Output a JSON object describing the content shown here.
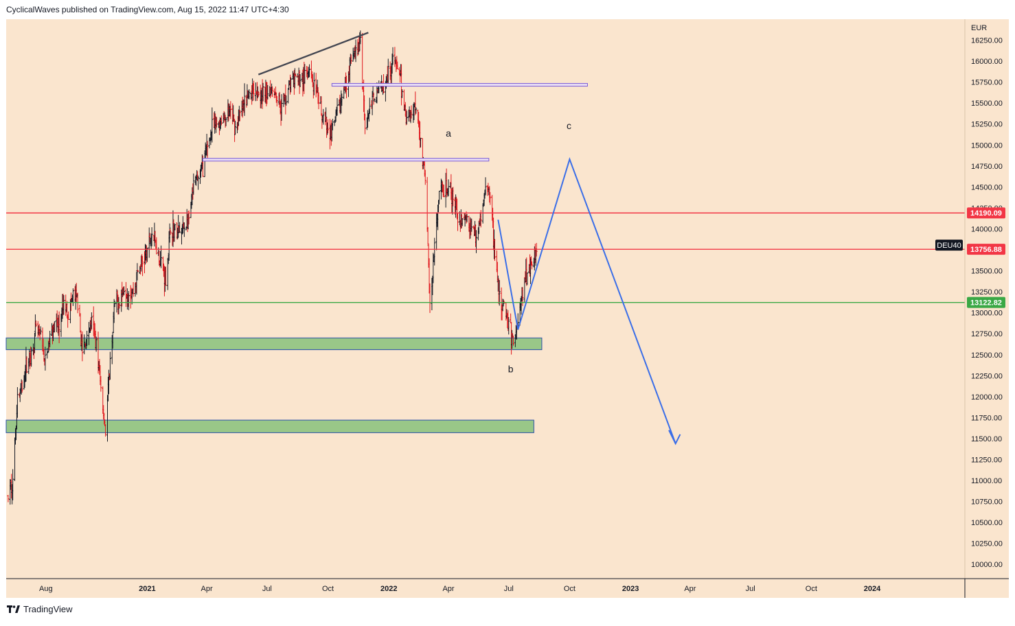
{
  "header": {
    "publisher": "CyclicalWaves",
    "published_text": "published on TradingView.com, Aug 15, 2022 11:47 UTC+4:30"
  },
  "footer": {
    "brand": "TradingView"
  },
  "colors": {
    "chart_background": "#fae5ce",
    "up_bar": "#131722",
    "down_bar": "#e0151b",
    "resistance_line": "#f23645",
    "support_line": "#3aa845",
    "zone_fill": "#99c788",
    "zone_border": "#2b4fa8",
    "channel_line": "#7b5bd6",
    "trend_line": "#434651",
    "projection_line": "#3a6ee8"
  },
  "chart_data": {
    "type": "ohlc_bars",
    "instrument": "DEU40",
    "currency": "EUR",
    "y_ticks": [
      10000,
      10250,
      10500,
      10750,
      11000,
      11250,
      11500,
      11750,
      12000,
      12250,
      12500,
      12750,
      13000,
      13250,
      13500,
      13750,
      14000,
      14250,
      14500,
      14750,
      15000,
      15250,
      15500,
      15750,
      16000,
      16250
    ],
    "y_tick_labels": [
      "10000.00",
      "10250.00",
      "10500.00",
      "10750.00",
      "11000.00",
      "11250.00",
      "11500.00",
      "11750.00",
      "12000.00",
      "12250.00",
      "12500.00",
      "12750.00",
      "13000.00",
      "13250.00",
      "13500.00",
      "13750.00",
      "14000.00",
      "14250.00",
      "14500.00",
      "14750.00",
      "15000.00",
      "15250.00",
      "15500.00",
      "15750.00",
      "16000.00",
      "16250.00"
    ],
    "ylim": [
      9830,
      16500
    ],
    "xlim": [
      "2020-06-02",
      "2024-05-20"
    ],
    "x_ticks": [
      {
        "date": "2020-08-01",
        "label": "Aug",
        "bold": false
      },
      {
        "date": "2021-01-01",
        "label": "2021",
        "bold": true
      },
      {
        "date": "2021-04-01",
        "label": "Apr",
        "bold": false
      },
      {
        "date": "2021-07-01",
        "label": "Jul",
        "bold": false
      },
      {
        "date": "2021-10-01",
        "label": "Oct",
        "bold": false
      },
      {
        "date": "2022-01-01",
        "label": "2022",
        "bold": true
      },
      {
        "date": "2022-04-01",
        "label": "Apr",
        "bold": false
      },
      {
        "date": "2022-07-01",
        "label": "Jul",
        "bold": false
      },
      {
        "date": "2022-10-01",
        "label": "Oct",
        "bold": false
      },
      {
        "date": "2023-01-01",
        "label": "2023",
        "bold": true
      },
      {
        "date": "2023-04-01",
        "label": "Apr",
        "bold": false
      },
      {
        "date": "2023-07-01",
        "label": "Jul",
        "bold": false
      },
      {
        "date": "2023-10-01",
        "label": "Oct",
        "bold": false
      },
      {
        "date": "2024-01-01",
        "label": "2024",
        "bold": true
      }
    ],
    "price_path": [
      [
        "2020-06-05",
        10800
      ],
      [
        "2020-06-12",
        11000
      ],
      [
        "2020-06-19",
        12000
      ],
      [
        "2020-06-26",
        12100
      ],
      [
        "2020-07-03",
        12400
      ],
      [
        "2020-07-10",
        12500
      ],
      [
        "2020-07-17",
        12800
      ],
      [
        "2020-07-24",
        12700
      ],
      [
        "2020-07-31",
        12400
      ],
      [
        "2020-08-07",
        12700
      ],
      [
        "2020-08-14",
        12900
      ],
      [
        "2020-08-21",
        12800
      ],
      [
        "2020-08-28",
        13100
      ],
      [
        "2020-09-04",
        13000
      ],
      [
        "2020-09-11",
        13200
      ],
      [
        "2020-09-18",
        13150
      ],
      [
        "2020-09-25",
        12500
      ],
      [
        "2020-10-02",
        12700
      ],
      [
        "2020-10-09",
        12900
      ],
      [
        "2020-10-16",
        12650
      ],
      [
        "2020-10-23",
        12100
      ],
      [
        "2020-10-30",
        11600
      ],
      [
        "2020-11-06",
        12400
      ],
      [
        "2020-11-13",
        13100
      ],
      [
        "2020-11-20",
        13150
      ],
      [
        "2020-11-27",
        13300
      ],
      [
        "2020-12-04",
        13250
      ],
      [
        "2020-12-11",
        13250
      ],
      [
        "2020-12-18",
        13500
      ],
      [
        "2020-12-31",
        13700
      ],
      [
        "2021-01-08",
        13950
      ],
      [
        "2021-01-15",
        13800
      ],
      [
        "2021-01-29",
        13400
      ],
      [
        "2021-02-05",
        14000
      ],
      [
        "2021-02-19",
        13950
      ],
      [
        "2021-03-05",
        14100
      ],
      [
        "2021-03-12",
        14500
      ],
      [
        "2021-03-26",
        14750
      ],
      [
        "2021-04-09",
        15200
      ],
      [
        "2021-04-23",
        15300
      ],
      [
        "2021-05-07",
        15400
      ],
      [
        "2021-05-14",
        15200
      ],
      [
        "2021-05-28",
        15500
      ],
      [
        "2021-06-11",
        15700
      ],
      [
        "2021-06-25",
        15600
      ],
      [
        "2021-07-09",
        15700
      ],
      [
        "2021-07-23",
        15450
      ],
      [
        "2021-08-06",
        15750
      ],
      [
        "2021-08-20",
        15800
      ],
      [
        "2021-09-03",
        15850
      ],
      [
        "2021-09-17",
        15500
      ],
      [
        "2021-10-01",
        15150
      ],
      [
        "2021-10-08",
        15200
      ],
      [
        "2021-10-22",
        15550
      ],
      [
        "2021-11-05",
        16000
      ],
      [
        "2021-11-19",
        16200
      ],
      [
        "2021-11-26",
        15250
      ],
      [
        "2021-12-10",
        15600
      ],
      [
        "2021-12-24",
        15750
      ],
      [
        "2022-01-07",
        16000
      ],
      [
        "2022-01-14",
        15950
      ],
      [
        "2022-01-28",
        15300
      ],
      [
        "2022-02-11",
        15500
      ],
      [
        "2022-02-25",
        14600
      ],
      [
        "2022-03-04",
        13100
      ],
      [
        "2022-03-18",
        14400
      ],
      [
        "2022-04-01",
        14500
      ],
      [
        "2022-04-15",
        14150
      ],
      [
        "2022-04-29",
        14100
      ],
      [
        "2022-05-13",
        13900
      ],
      [
        "2022-05-27",
        14450
      ],
      [
        "2022-06-03",
        14450
      ],
      [
        "2022-06-10",
        13700
      ],
      [
        "2022-06-17",
        13150
      ],
      [
        "2022-06-24",
        13100
      ],
      [
        "2022-07-01",
        12850
      ],
      [
        "2022-07-08",
        12650
      ],
      [
        "2022-07-15",
        12900
      ],
      [
        "2022-07-22",
        13250
      ],
      [
        "2022-07-29",
        13500
      ],
      [
        "2022-08-05",
        13600
      ],
      [
        "2022-08-12",
        13780
      ]
    ],
    "horizontal_lines": [
      {
        "name": "resistance-upper",
        "y": 14190.09,
        "label": "14190.09",
        "color_key": "resistance_line"
      },
      {
        "name": "resistance-lower",
        "y": 13756.88,
        "label": "13756.88",
        "color_key": "resistance_line"
      },
      {
        "name": "support",
        "y": 13122.82,
        "label": "13122.82",
        "color_key": "support_line"
      }
    ],
    "zones": [
      {
        "name": "zone-upper",
        "x0": "2020-06-02",
        "x1": "2022-08-20",
        "y0": 12560,
        "y1": 12700
      },
      {
        "name": "zone-lower",
        "x0": "2020-06-02",
        "x1": "2022-08-08",
        "y0": 11570,
        "y1": 11720
      }
    ],
    "channels": [
      {
        "name": "channel-upper",
        "x0": "2021-10-07",
        "x1": "2022-10-28",
        "y": 15718
      },
      {
        "name": "channel-lower",
        "x0": "2021-03-26",
        "x1": "2022-06-01",
        "y": 14825
      }
    ],
    "trend_line": {
      "x0": "2021-06-18",
      "y0": 15840,
      "x1": "2021-12-01",
      "y1": 16340
    },
    "projection": {
      "points": [
        [
          "2022-06-15",
          14110
        ],
        [
          "2022-07-15",
          12800
        ],
        [
          "2022-10-01",
          14830
        ],
        [
          "2023-03-10",
          11440
        ]
      ],
      "arrowhead": [
        [
          "2023-02-28",
          11600
        ],
        [
          "2023-03-10",
          11440
        ],
        [
          "2023-03-17",
          11550
        ]
      ]
    },
    "wave_labels": [
      {
        "name": "wave-a",
        "text": "a",
        "x": "2022-04-01",
        "y": 15100
      },
      {
        "name": "wave-b",
        "text": "b",
        "x": "2022-07-04",
        "y": 12290
      },
      {
        "name": "wave-c",
        "text": "c",
        "x": "2022-09-30",
        "y": 15190
      }
    ],
    "ticker_tag": "DEU40",
    "axis_currency_label": "EUR"
  }
}
